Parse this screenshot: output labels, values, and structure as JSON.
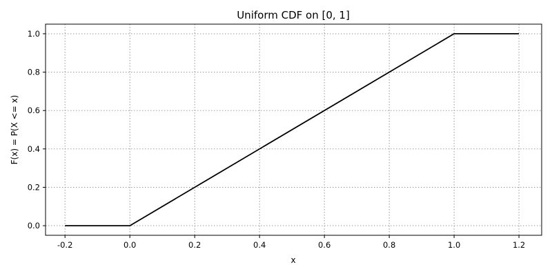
{
  "chart_data": {
    "type": "line",
    "title": "Uniform CDF on [0, 1]",
    "xlabel": "x",
    "ylabel": "F(x) = P(X <= x)",
    "xlim": [
      -0.26,
      1.27
    ],
    "ylim": [
      -0.05,
      1.05
    ],
    "xticks": [
      -0.2,
      0.0,
      0.2,
      0.4,
      0.6,
      0.8,
      1.0,
      1.2
    ],
    "xtick_labels": [
      "-0.2",
      "0.0",
      "0.2",
      "0.4",
      "0.6",
      "0.8",
      "1.0",
      "1.2"
    ],
    "yticks": [
      0.0,
      0.2,
      0.4,
      0.6,
      0.8,
      1.0
    ],
    "ytick_labels": [
      "0.0",
      "0.2",
      "0.4",
      "0.6",
      "0.8",
      "1.0"
    ],
    "grid": true,
    "series": [
      {
        "color": "#000000",
        "x": [
          -0.2,
          0.0,
          1.0,
          1.2
        ],
        "y": [
          0.0,
          0.0,
          1.0,
          1.0
        ]
      }
    ]
  }
}
